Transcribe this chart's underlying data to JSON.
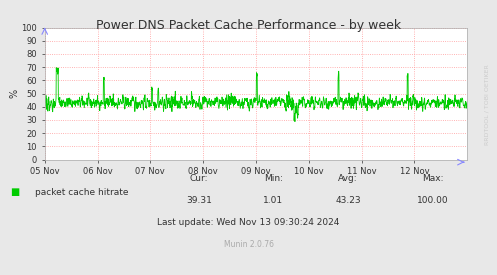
{
  "title": "Power DNS Packet Cache Performance - by week",
  "ylabel": "%",
  "line_color": "#00cc00",
  "legend_label": "packet cache hitrate",
  "legend_color": "#00cc00",
  "cur": "39.31",
  "min": "1.01",
  "avg": "43.23",
  "max": "100.00",
  "last_update": "Last update: Wed Nov 13 09:30:24 2024",
  "munin_version": "Munin 2.0.76",
  "ylim": [
    0,
    100
  ],
  "yticks": [
    0,
    10,
    20,
    30,
    40,
    50,
    60,
    70,
    80,
    90,
    100
  ],
  "x_labels": [
    "05 Nov",
    "06 Nov",
    "07 Nov",
    "08 Nov",
    "09 Nov",
    "10 Nov",
    "11 Nov",
    "12 Nov"
  ],
  "background_color": "#e8e8e8",
  "plot_bg_color": "#ffffff",
  "grid_color": "#ff9999",
  "axis_color": "#aaaaaa",
  "title_color": "#333333",
  "watermark_color": "#cccccc",
  "watermark": "RRDTOOL / TOBI OETIKER",
  "seed": 42,
  "n_points": 2016
}
